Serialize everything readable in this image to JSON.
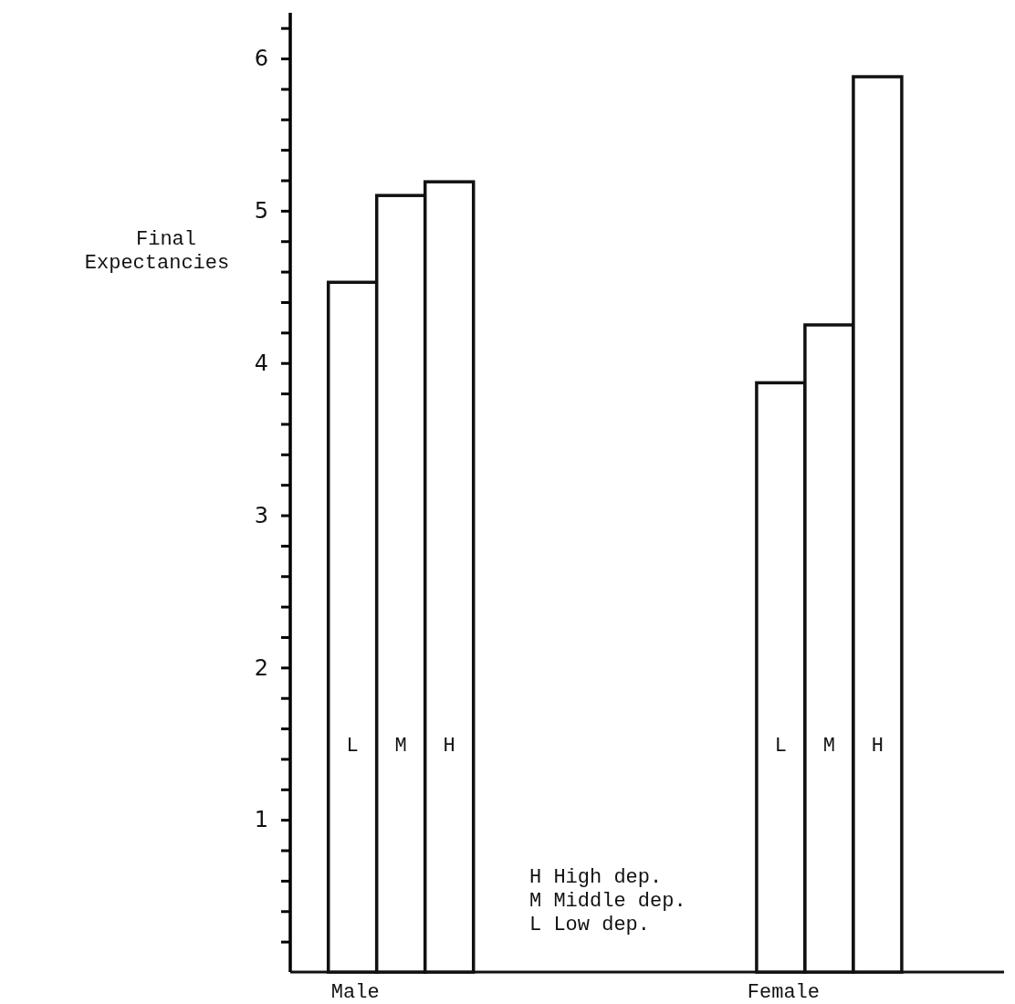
{
  "chart_data": {
    "type": "bar",
    "ylabel": "Final Expectancies",
    "categories": [
      "Male",
      "Female"
    ],
    "series": [
      {
        "name": "L",
        "color": "#ffffff",
        "values": [
          4.53,
          3.87
        ]
      },
      {
        "name": "M",
        "color": "#ffffff",
        "values": [
          5.1,
          4.25
        ]
      },
      {
        "name": "H",
        "color": "#ffffff",
        "values": [
          5.19,
          5.88
        ]
      }
    ],
    "ylim": [
      0,
      6.3
    ],
    "yticks": [
      {
        "value": 0.2,
        "label": null
      },
      {
        "value": 0.4,
        "label": null
      },
      {
        "value": 0.6,
        "label": null
      },
      {
        "value": 0.8,
        "label": null
      },
      1,
      {
        "value": 1.2,
        "label": null
      },
      {
        "value": 1.4,
        "label": null
      },
      {
        "value": 1.6,
        "label": null
      },
      {
        "value": 1.8,
        "label": null
      },
      2,
      {
        "value": 2.2,
        "label": null
      },
      {
        "value": 2.4,
        "label": null
      },
      {
        "value": 2.6,
        "label": null
      },
      {
        "value": 2.8,
        "label": null
      },
      3,
      {
        "value": 3.2,
        "label": null
      },
      {
        "value": 3.4,
        "label": null
      },
      {
        "value": 3.6,
        "label": null
      },
      {
        "value": 3.8,
        "label": null
      },
      4,
      {
        "value": 4.2,
        "label": null
      },
      {
        "value": 4.4,
        "label": null
      },
      {
        "value": 4.6,
        "label": null
      },
      {
        "value": 4.8,
        "label": null
      },
      5,
      {
        "value": 5.2,
        "label": null
      },
      {
        "value": 5.4,
        "label": null
      },
      {
        "value": 5.6,
        "label": null
      },
      {
        "value": 5.8,
        "label": null
      },
      6,
      {
        "value": 6.2,
        "label": null
      }
    ],
    "annotations": [
      "H High dep.",
      "M Middle dep.",
      "L Low dep."
    ],
    "grid": false
  }
}
